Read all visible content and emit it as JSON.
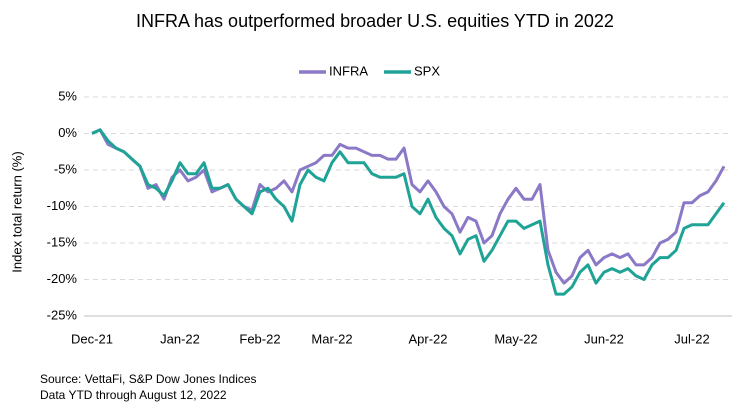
{
  "chart_data": {
    "type": "line",
    "title": "INFRA has outperformed broader U.S. equities YTD in 2022",
    "y_label": "Index total return (%)",
    "notes": [
      "Source: VettaFi, S&P Dow Jones Indices",
      "Data YTD through August 12, 2022"
    ],
    "legend": "top",
    "grid": true,
    "ylim": [
      -25,
      5
    ],
    "yticks": [
      {
        "value": -25,
        "label": "-25%"
      },
      {
        "value": -20,
        "label": "-20%"
      },
      {
        "value": -15,
        "label": "-15%"
      },
      {
        "value": -10,
        "label": "-10%"
      },
      {
        "value": -5,
        "label": "-5%"
      },
      {
        "value": 0,
        "label": "0%"
      },
      {
        "value": 5,
        "label": "5%"
      }
    ],
    "categories": [
      "Dec-21",
      null,
      null,
      null,
      null,
      null,
      null,
      null,
      null,
      null,
      null,
      "Jan-22",
      null,
      null,
      null,
      null,
      null,
      null,
      null,
      null,
      null,
      "Feb-22",
      null,
      null,
      null,
      null,
      null,
      null,
      null,
      null,
      "Mar-22",
      null,
      null,
      null,
      null,
      null,
      null,
      null,
      null,
      null,
      null,
      null,
      "Apr-22",
      null,
      null,
      null,
      null,
      null,
      null,
      null,
      null,
      null,
      null,
      "May-22",
      null,
      null,
      null,
      null,
      null,
      null,
      null,
      null,
      null,
      null,
      "Jun-22",
      null,
      null,
      null,
      null,
      null,
      null,
      null,
      null,
      null,
      null,
      "Jul-22",
      null,
      null,
      null,
      null
    ],
    "series": [
      {
        "name": "INFRA",
        "color": "#8b78c6",
        "values": [
          0,
          0.5,
          -1.5,
          -2,
          -2.5,
          -3.5,
          -4.5,
          -7.5,
          -7,
          -9,
          -6,
          -5,
          -6.5,
          -6,
          -5,
          -8,
          -7.5,
          -7,
          -9,
          -10,
          -10.5,
          -7,
          -8,
          -7.5,
          -6.5,
          -8,
          -5,
          -4.5,
          -4,
          -3,
          -3,
          -1.5,
          -2,
          -2,
          -2.5,
          -3,
          -3,
          -3.5,
          -3.5,
          -2,
          -7,
          -8,
          -6.5,
          -8,
          -10,
          -11,
          -13.5,
          -11.5,
          -12,
          -15,
          -14,
          -11,
          -9,
          -7.5,
          -9,
          -9,
          -7,
          -16,
          -19,
          -20.5,
          -19.5,
          -17,
          -16,
          -18,
          -17,
          -16.5,
          -17,
          -16.5,
          -18,
          -18,
          -17,
          -15,
          -14.5,
          -13.5,
          -9.5,
          -9.5,
          -8.5,
          -8,
          -6.5,
          -4.5
        ]
      },
      {
        "name": "SPX",
        "color": "#1ea396",
        "values": [
          0,
          0.5,
          -1,
          -2,
          -2.5,
          -3.5,
          -4.5,
          -7,
          -7.5,
          -8.5,
          -6.5,
          -4,
          -5.5,
          -5.5,
          -4,
          -7.5,
          -7.5,
          -7,
          -9,
          -10,
          -11,
          -8,
          -7.5,
          -9,
          -10,
          -12,
          -7,
          -5,
          -6,
          -6.5,
          -4,
          -2.5,
          -4,
          -4,
          -4,
          -5.5,
          -6,
          -6,
          -6,
          -5.5,
          -10,
          -11,
          -9,
          -11.5,
          -13,
          -14,
          -16.5,
          -14.5,
          -14,
          -17.5,
          -16,
          -14,
          -12,
          -12,
          -13,
          -12.5,
          -12,
          -18,
          -22,
          -22,
          -21,
          -19,
          -18,
          -20.5,
          -19,
          -18.5,
          -19,
          -18.5,
          -19.5,
          -20,
          -18,
          -17,
          -17,
          -16,
          -13,
          -12.5,
          -12.5,
          -12.5,
          -11,
          -9.5
        ]
      }
    ]
  }
}
